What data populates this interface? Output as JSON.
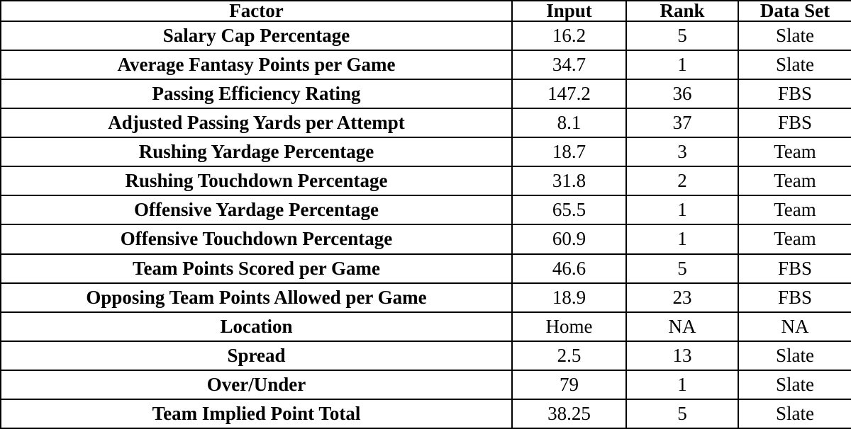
{
  "table": {
    "headers": {
      "factor": "Factor",
      "input": "Input",
      "rank": "Rank",
      "dataset": "Data Set"
    },
    "rows": [
      {
        "factor": "Salary Cap Percentage",
        "input": "16.2",
        "rank": "5",
        "dataset": "Slate"
      },
      {
        "factor": "Average Fantasy Points per Game",
        "input": "34.7",
        "rank": "1",
        "dataset": "Slate"
      },
      {
        "factor": "Passing Efficiency Rating",
        "input": "147.2",
        "rank": "36",
        "dataset": "FBS"
      },
      {
        "factor": "Adjusted Passing Yards per Attempt",
        "input": "8.1",
        "rank": "37",
        "dataset": "FBS"
      },
      {
        "factor": "Rushing Yardage Percentage",
        "input": "18.7",
        "rank": "3",
        "dataset": "Team"
      },
      {
        "factor": "Rushing Touchdown Percentage",
        "input": "31.8",
        "rank": "2",
        "dataset": "Team"
      },
      {
        "factor": "Offensive Yardage Percentage",
        "input": "65.5",
        "rank": "1",
        "dataset": "Team"
      },
      {
        "factor": "Offensive Touchdown Percentage",
        "input": "60.9",
        "rank": "1",
        "dataset": "Team"
      },
      {
        "factor": "Team Points Scored per Game",
        "input": "46.6",
        "rank": "5",
        "dataset": "FBS"
      },
      {
        "factor": "Opposing Team Points Allowed per Game",
        "input": "18.9",
        "rank": "23",
        "dataset": "FBS"
      },
      {
        "factor": "Location",
        "input": "Home",
        "rank": "NA",
        "dataset": "NA"
      },
      {
        "factor": "Spread",
        "input": "2.5",
        "rank": "13",
        "dataset": "Slate"
      },
      {
        "factor": "Over/Under",
        "input": "79",
        "rank": "1",
        "dataset": "Slate"
      },
      {
        "factor": "Team Implied Point Total",
        "input": "38.25",
        "rank": "5",
        "dataset": "Slate"
      }
    ]
  }
}
